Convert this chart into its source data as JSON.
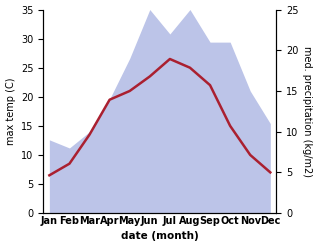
{
  "months": [
    "Jan",
    "Feb",
    "Mar",
    "Apr",
    "May",
    "Jun",
    "Jul",
    "Aug",
    "Sep",
    "Oct",
    "Nov",
    "Dec"
  ],
  "temperature": [
    6.5,
    8.5,
    13.5,
    19.5,
    21.0,
    23.5,
    26.5,
    25.0,
    22.0,
    15.0,
    10.0,
    7.0
  ],
  "precipitation": [
    9,
    8,
    10,
    14,
    19,
    25,
    22,
    25,
    21,
    21,
    15,
    11
  ],
  "temp_color": "#aa2030",
  "precip_fill_color": "#bcc4e8",
  "temp_ylim": [
    0,
    35
  ],
  "precip_ylim": [
    0,
    25
  ],
  "temp_yticks": [
    0,
    5,
    10,
    15,
    20,
    25,
    30,
    35
  ],
  "precip_yticks": [
    0,
    5,
    10,
    15,
    20,
    25
  ],
  "ylabel_left": "max temp (C)",
  "ylabel_right": "med. precipitation (kg/m2)",
  "xlabel": "date (month)",
  "background_color": "#ffffff",
  "linewidth": 1.8,
  "label_fontsize": 7,
  "tick_fontsize": 7
}
